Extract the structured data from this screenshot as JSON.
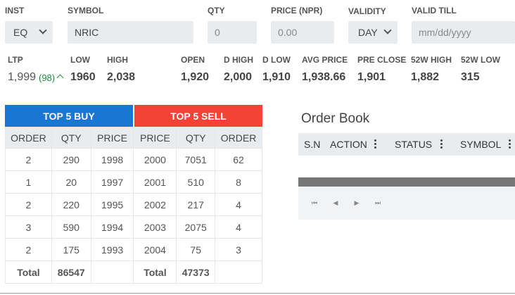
{
  "order_form": {
    "inst_label": "INST",
    "inst_value": "EQ",
    "symbol_label": "SYMBOL",
    "symbol_value": "NRIC",
    "qty_label": "QTY",
    "qty_placeholder": "0",
    "price_label": "PRICE (NPR)",
    "price_placeholder": "0.00",
    "validity_label": "VALIDITY",
    "validity_value": "DAY",
    "valid_till_label": "VALID TILL",
    "valid_till_placeholder": "mm/dd/yyyy"
  },
  "quote": {
    "ltp_label": "LTP",
    "ltp_value": "1,999",
    "ltp_change": "(98)",
    "low_label": "LOW",
    "low_value": "1960",
    "high_label": "HIGH",
    "high_value": "2,038",
    "open_label": "OPEN",
    "open_value": "1,920",
    "dhigh_label": "D HIGH",
    "dhigh_value": "2,000",
    "dlow_label": "D LOW",
    "dlow_value": "1,910",
    "avg_label": "AVG PRICE",
    "avg_value": "1,938.66",
    "preclose_label": "PRE CLOSE",
    "preclose_value": "1,901",
    "w52high_label": "52W HIGH",
    "w52high_value": "1,882",
    "w52low_label": "52W LOW",
    "w52low_value": "315"
  },
  "depth": {
    "buy_title": "TOP 5 BUY",
    "sell_title": "TOP 5 SELL",
    "headers": [
      "ORDER",
      "QTY",
      "PRICE",
      "PRICE",
      "QTY",
      "ORDER"
    ],
    "rows": [
      [
        "2",
        "290",
        "1998",
        "2000",
        "7051",
        "62"
      ],
      [
        "1",
        "20",
        "1997",
        "2001",
        "510",
        "8"
      ],
      [
        "2",
        "220",
        "1995",
        "2002",
        "217",
        "4"
      ],
      [
        "3",
        "590",
        "1994",
        "2003",
        "2075",
        "4"
      ],
      [
        "2",
        "175",
        "1993",
        "2004",
        "75",
        "3"
      ]
    ],
    "total_label": "Total",
    "buy_total": "86547",
    "sell_total": "47373"
  },
  "order_book": {
    "title": "Order Book",
    "columns": [
      "S.N",
      "ACTION",
      "STATUS",
      "SYMBOL"
    ]
  },
  "colors": {
    "buy": "#1976d2",
    "sell": "#f44336",
    "up": "#1a8c3a"
  }
}
